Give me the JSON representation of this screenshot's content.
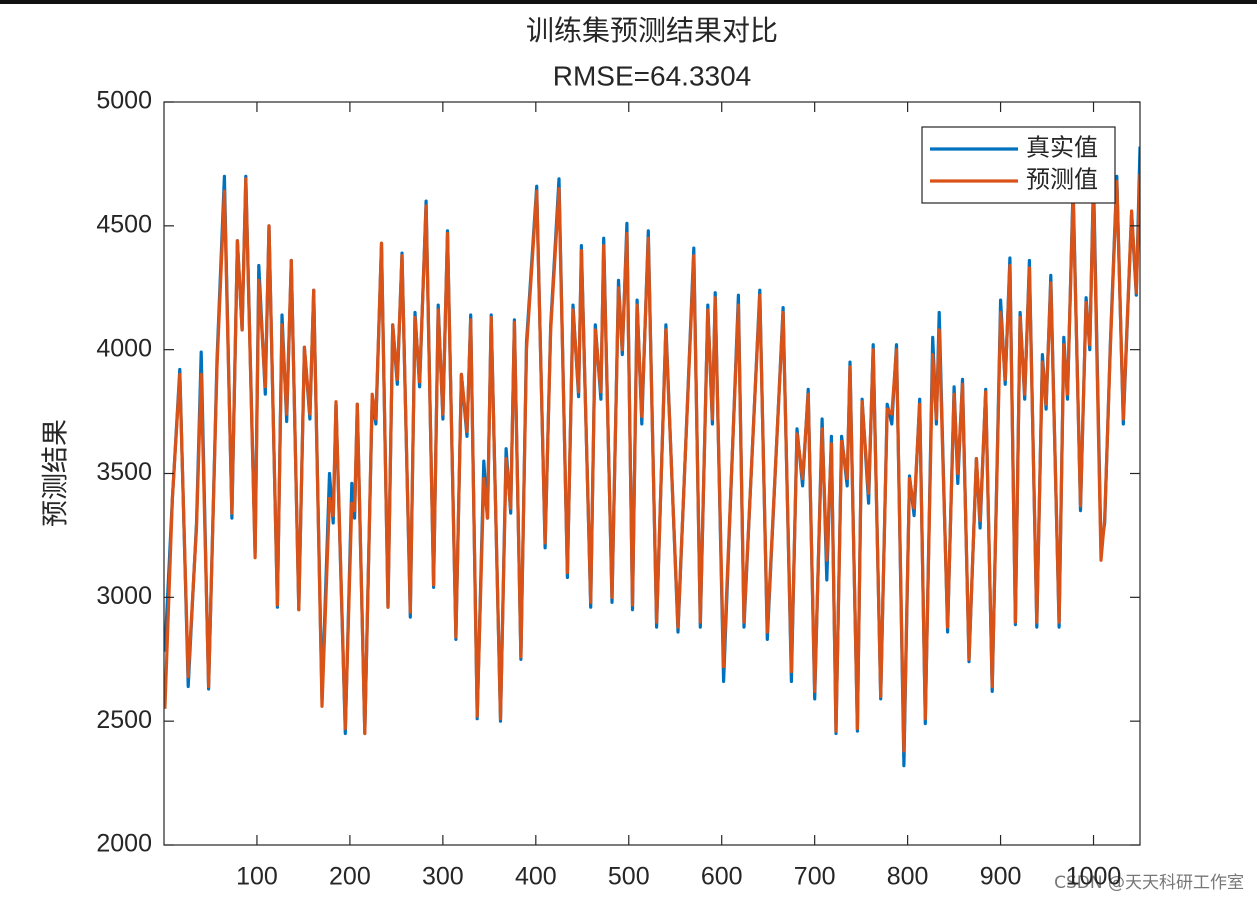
{
  "chart_data": {
    "type": "line",
    "title": "训练集预测结果对比",
    "subtitle": "RMSE=64.3304",
    "y_label": "预测结果",
    "watermark": "CSDN @天天科研工作室",
    "x": [
      1,
      9,
      17,
      26,
      35,
      40,
      48,
      57,
      65,
      73,
      79,
      84,
      88,
      98,
      102,
      109,
      113,
      122,
      127,
      132,
      137,
      145,
      151,
      157,
      161,
      170,
      178,
      182,
      185,
      195,
      202,
      205,
      208,
      216,
      224,
      228,
      234,
      241,
      246,
      251,
      256,
      265,
      270,
      275,
      282,
      290,
      295,
      300,
      305,
      314,
      320,
      326,
      330,
      337,
      344,
      348,
      352,
      362,
      368,
      373,
      377,
      384,
      390,
      401,
      410,
      416,
      425,
      434,
      440,
      446,
      449,
      459,
      464,
      470,
      473,
      482,
      489,
      493,
      498,
      504,
      509,
      514,
      521,
      530,
      540,
      553,
      570,
      577,
      585,
      590,
      593,
      602,
      618,
      624,
      641,
      649,
      666,
      675,
      681,
      687,
      693,
      700,
      708,
      713,
      718,
      723,
      729,
      735,
      738,
      746,
      751,
      758,
      763,
      771,
      778,
      783,
      788,
      796,
      802,
      807,
      813,
      819,
      827,
      831,
      834,
      843,
      850,
      854,
      859,
      866,
      874,
      878,
      884,
      891,
      900,
      905,
      910,
      916,
      921,
      926,
      931,
      939,
      945,
      949,
      954,
      963,
      968,
      972,
      978,
      986,
      992,
      996,
      1000,
      1008,
      1012,
      1018,
      1025,
      1032,
      1041,
      1046,
      1050
    ],
    "series": [
      {
        "name": "真实值",
        "color": "#0072bd",
        "values": [
          2780,
          3400,
          3920,
          2640,
          3300,
          3990,
          2630,
          3960,
          4700,
          3320,
          4440,
          4080,
          4700,
          3180,
          4340,
          3820,
          4500,
          2960,
          4140,
          3710,
          4360,
          2950,
          4010,
          3720,
          4240,
          2590,
          3500,
          3300,
          3780,
          2450,
          3460,
          3320,
          3780,
          2450,
          3800,
          3700,
          4430,
          2960,
          4100,
          3860,
          4390,
          2920,
          4150,
          3850,
          4600,
          3040,
          4180,
          3720,
          4480,
          2830,
          3900,
          3650,
          4140,
          2510,
          3550,
          3320,
          4140,
          2500,
          3600,
          3340,
          4120,
          2750,
          4030,
          4660,
          3200,
          4100,
          4690,
          3080,
          4180,
          3810,
          4420,
          2960,
          4100,
          3800,
          4450,
          2980,
          4280,
          3980,
          4510,
          2950,
          4200,
          3700,
          4480,
          2880,
          4100,
          2860,
          4410,
          2880,
          4180,
          3700,
          4230,
          2660,
          4220,
          2880,
          4240,
          2830,
          4170,
          2660,
          3680,
          3450,
          3840,
          2590,
          3720,
          3070,
          3650,
          2450,
          3650,
          3450,
          3950,
          2460,
          3800,
          3380,
          4020,
          2590,
          3780,
          3700,
          4020,
          2320,
          3490,
          3330,
          3800,
          2490,
          4050,
          3700,
          4150,
          2860,
          3850,
          3460,
          3880,
          2740,
          3560,
          3280,
          3840,
          2620,
          4200,
          3860,
          4370,
          2890,
          4150,
          3800,
          4360,
          2880,
          3980,
          3760,
          4300,
          2880,
          4050,
          3800,
          4660,
          3350,
          4210,
          4000,
          4700,
          3200,
          3300,
          4020,
          4700,
          3700,
          4550,
          4220,
          4820
        ]
      },
      {
        "name": "预测值",
        "color": "#d95319",
        "values": [
          2550,
          3400,
          3900,
          2680,
          3280,
          3900,
          2640,
          3930,
          4640,
          3340,
          4440,
          4080,
          4690,
          3160,
          4280,
          3850,
          4500,
          2970,
          4100,
          3740,
          4360,
          2950,
          4010,
          3740,
          4240,
          2560,
          3400,
          3330,
          3790,
          2470,
          3380,
          3350,
          3780,
          2450,
          3820,
          3720,
          4430,
          2960,
          4100,
          3880,
          4380,
          2940,
          4130,
          3870,
          4580,
          3050,
          4160,
          3740,
          4470,
          2840,
          3900,
          3670,
          4120,
          2520,
          3480,
          3320,
          4130,
          2510,
          3560,
          3360,
          4110,
          2760,
          4000,
          4640,
          3220,
          4080,
          4650,
          3100,
          4160,
          3830,
          4400,
          2980,
          4080,
          3830,
          4420,
          3000,
          4250,
          4000,
          4470,
          2970,
          4180,
          3730,
          4450,
          2900,
          4080,
          2880,
          4380,
          2900,
          4160,
          3720,
          4210,
          2720,
          4180,
          2900,
          4220,
          2860,
          4150,
          2700,
          3660,
          3480,
          3820,
          2620,
          3680,
          3150,
          3620,
          2460,
          3630,
          3480,
          3930,
          2470,
          3790,
          3420,
          4000,
          2600,
          3760,
          3740,
          4000,
          2380,
          3480,
          3360,
          3780,
          2510,
          3980,
          3720,
          4080,
          2880,
          3820,
          3500,
          3860,
          2750,
          3560,
          3310,
          3830,
          2640,
          4150,
          3880,
          4340,
          2900,
          4130,
          3820,
          4330,
          2900,
          3950,
          3780,
          4270,
          2900,
          4020,
          3820,
          4620,
          3370,
          4190,
          4020,
          4650,
          3150,
          3320,
          4000,
          4680,
          3720,
          4560,
          4230,
          4710
        ]
      }
    ],
    "xlim": [
      0,
      1050
    ],
    "xticks": [
      100,
      200,
      300,
      400,
      500,
      600,
      700,
      800,
      900,
      1000
    ],
    "ylim": [
      2000,
      5000
    ],
    "yticks": [
      2000,
      2500,
      3000,
      3500,
      4000,
      4500,
      5000
    ],
    "legend": "top-right"
  }
}
